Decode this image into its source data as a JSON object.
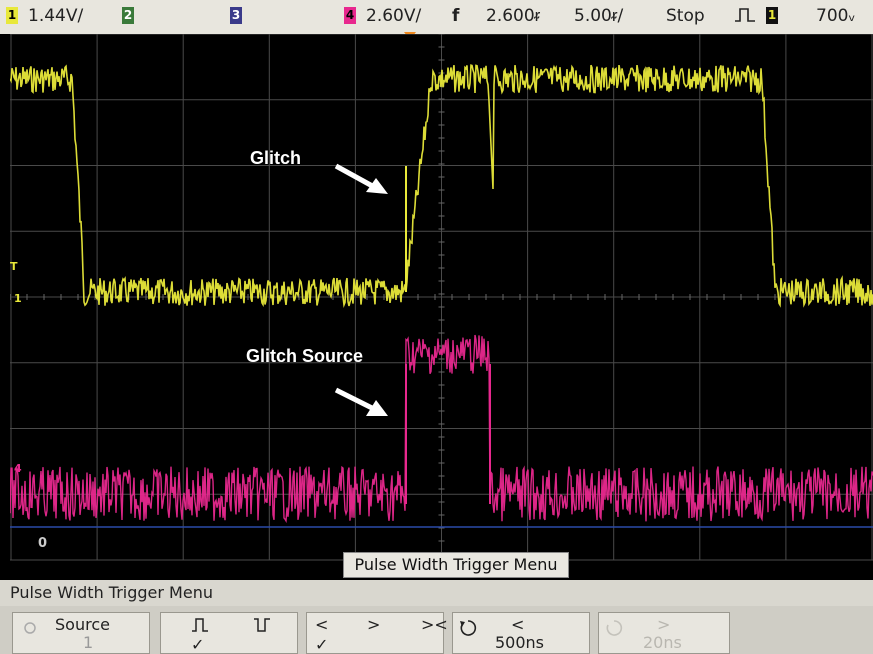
{
  "status": {
    "ch1_scale": "1.44V/",
    "ch1_number": "1",
    "ch2_number": "2",
    "ch3_number": "3",
    "ch4_number": "4",
    "ch4_scale": "2.60V/",
    "trigger_symbol": "f",
    "delay": "2.600ᵲ",
    "timebase": "5.00ᵲ/",
    "run_state": "Stop",
    "trigger_mode_icon": "pulse-icon",
    "trigger_source_number": "1",
    "trigger_level": "700ᵥ"
  },
  "screen": {
    "annotation_glitch": "Glitch",
    "annotation_glitch_source": "Glitch Source",
    "overlay_label": "Pulse Width Trigger Menu",
    "ground_marker": "0",
    "ch1_marker": "1",
    "ch4_marker": "4",
    "colors": {
      "ch1": "#e8e83a",
      "ch4": "#e8288e",
      "grid": "#4a4a4a"
    }
  },
  "menu": {
    "title": "Pulse Width Trigger Menu",
    "softkeys": {
      "source_label": "Source",
      "source_value": "1",
      "polarity_pos": "Π",
      "polarity_neg": "∐",
      "polarity_check": "✓",
      "qual_lt": "<",
      "qual_gt": ">",
      "qual_range": "><",
      "qual_check": "✓",
      "time_lt_symbol": "<",
      "time_lt_value": "500ns",
      "time_gt_symbol": ">",
      "time_gt_value": "20ns"
    }
  }
}
